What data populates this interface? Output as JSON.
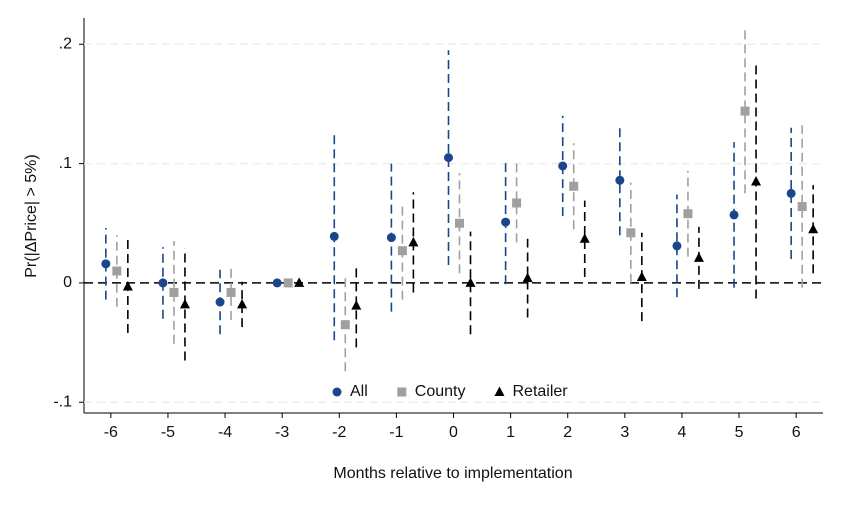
{
  "chart_data": {
    "type": "errorbar",
    "x_label": "Months relative to implementation",
    "y_label": "Pr(|ΔPrice| > 5%)",
    "x": [
      -6,
      -5,
      -4,
      -3,
      -2,
      -1,
      0,
      1,
      2,
      3,
      4,
      5,
      6
    ],
    "series": [
      {
        "name": "All",
        "color": "#1a468c",
        "marker": "circle",
        "values": [
          0.016,
          0.0,
          -0.016,
          0.0,
          0.039,
          0.038,
          0.105,
          0.051,
          0.098,
          0.086,
          0.031,
          0.057,
          0.075
        ],
        "errors": [
          0.03,
          0.03,
          0.027,
          0.0,
          0.087,
          0.062,
          0.09,
          0.052,
          0.042,
          0.046,
          0.043,
          0.061,
          0.055
        ]
      },
      {
        "name": "County",
        "color": "#a0a0a0",
        "marker": "square",
        "values": [
          0.01,
          -0.008,
          -0.008,
          0.0,
          -0.035,
          0.027,
          0.05,
          0.067,
          0.081,
          0.042,
          0.058,
          0.144,
          0.064
        ],
        "errors": [
          0.03,
          0.043,
          0.023,
          0.0,
          0.039,
          0.041,
          0.042,
          0.033,
          0.036,
          0.042,
          0.036,
          0.069,
          0.068
        ]
      },
      {
        "name": "Retailer",
        "color": "#000000",
        "marker": "triangle",
        "values": [
          -0.003,
          -0.018,
          -0.018,
          0.0,
          -0.019,
          0.034,
          0.0,
          0.004,
          0.037,
          0.005,
          0.021,
          0.085,
          0.045
        ],
        "errors": [
          0.039,
          0.047,
          0.019,
          0.0,
          0.035,
          0.042,
          0.043,
          0.033,
          0.032,
          0.037,
          0.026,
          0.098,
          0.037
        ]
      }
    ],
    "xlim": [
      -6.47,
      6.47
    ],
    "xticks": [
      -6,
      -5,
      -4,
      -3,
      -2,
      -1,
      0,
      1,
      2,
      3,
      4,
      5,
      6
    ],
    "ylim": [
      -0.109,
      0.222
    ],
    "yticks": [
      {
        "value": -0.1,
        "label": "-.1"
      },
      0,
      {
        "value": 0.1,
        "label": ".1"
      },
      {
        "value": 0.2,
        "label": ".2"
      }
    ],
    "grid": true
  }
}
